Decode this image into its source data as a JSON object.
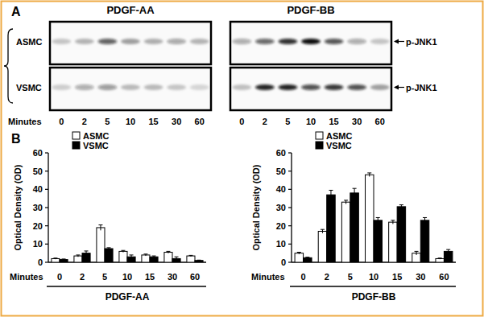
{
  "figure": {
    "panel_labels": [
      "A",
      "B"
    ],
    "blots": [
      {
        "title": "PDGF-AA",
        "rows": [
          "ASMC",
          "VSMC"
        ],
        "lanes": [
          0,
          2,
          5,
          10,
          15,
          30,
          60
        ],
        "x_label": "Minutes"
      },
      {
        "title": "PDGF-BB",
        "rows": [
          "ASMC",
          "VSMC"
        ],
        "lanes": [
          0,
          2,
          5,
          10,
          15,
          30,
          60
        ],
        "x_label": "Minutes",
        "band_labels": [
          "p-JNK1",
          "p-JNK1"
        ]
      }
    ]
  },
  "chart_data": [
    {
      "type": "bar",
      "title": "PDGF-AA",
      "x_label": "Minutes",
      "y_label": "Optical Density (OD)",
      "categories": [
        "0",
        "2",
        "5",
        "10",
        "15",
        "30",
        "60"
      ],
      "series": [
        {
          "name": "ASMC",
          "color": "#ffffff",
          "values": [
            2,
            3.5,
            19,
            6,
            4,
            5.5,
            3.5
          ],
          "errors": [
            0.3,
            0.5,
            1.5,
            0.5,
            0.5,
            0.5,
            0.3
          ]
        },
        {
          "name": "VSMC",
          "color": "#000000",
          "values": [
            1.5,
            5,
            7.5,
            3,
            3,
            2,
            1
          ],
          "errors": [
            0.3,
            1.2,
            0.5,
            1,
            0.5,
            1,
            0.2
          ]
        }
      ],
      "ylim": [
        0,
        60
      ],
      "yticks": [
        0,
        10,
        20,
        30,
        40,
        50,
        60
      ],
      "legend": "top-left"
    },
    {
      "type": "bar",
      "title": "PDGF-BB",
      "x_label": "Minutes",
      "y_label": "Optical Density (OD)",
      "categories": [
        "0",
        "2",
        "5",
        "10",
        "15",
        "30",
        "60"
      ],
      "series": [
        {
          "name": "ASMC",
          "color": "#ffffff",
          "values": [
            5,
            17,
            33,
            48,
            22,
            5,
            2
          ],
          "errors": [
            0.5,
            1,
            1,
            1,
            1,
            1,
            0.3
          ]
        },
        {
          "name": "VSMC",
          "color": "#000000",
          "values": [
            2.5,
            37,
            38,
            23,
            30.5,
            23,
            6
          ],
          "errors": [
            0.3,
            2.5,
            2.5,
            1.5,
            1,
            1.5,
            1
          ]
        }
      ],
      "ylim": [
        0,
        60
      ],
      "yticks": [
        0,
        10,
        20,
        30,
        40,
        50,
        60
      ],
      "legend": "top-left"
    }
  ]
}
